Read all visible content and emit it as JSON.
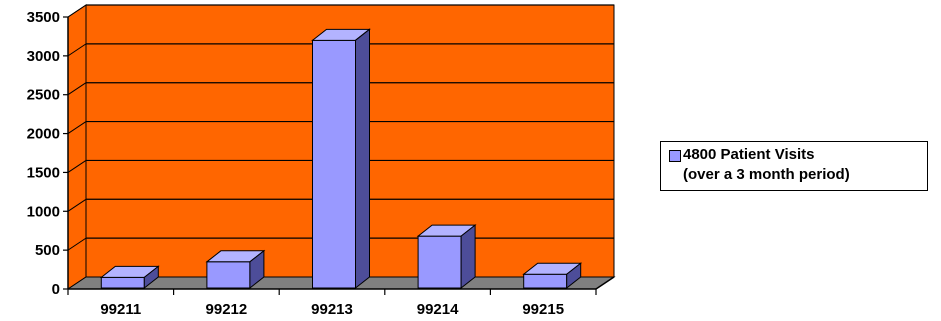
{
  "chart_data": {
    "type": "bar",
    "categories": [
      "99211",
      "99212",
      "99213",
      "99214",
      "99215"
    ],
    "series": [
      {
        "name": "4800 Patient Visits (over a 3 month period)",
        "values": [
          150,
          350,
          3200,
          680,
          190
        ]
      }
    ],
    "ylim": [
      0,
      3500
    ],
    "yticks": [
      0,
      500,
      1000,
      1500,
      2000,
      2500,
      3000,
      3500
    ],
    "grid": true,
    "legend": "right",
    "style": "3d-column"
  },
  "legend": {
    "line1": "4800 Patient Visits",
    "line2": "(over a 3 month period)"
  },
  "colors": {
    "plot_background": "#ff6600",
    "bar_front": "#9999ff",
    "bar_top": "#b3b3ff",
    "bar_side": "#4d4d99",
    "floor": "#808080",
    "gridline": "#000000"
  }
}
